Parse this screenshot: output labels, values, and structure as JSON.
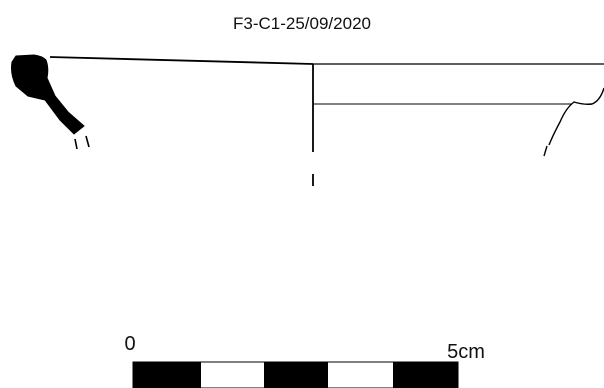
{
  "drawing": {
    "sample_label": "F3-C1-25/09/2020"
  },
  "scale_bar": {
    "start_label": "0",
    "end_label": "5cm",
    "segment_count": 5,
    "fill_color": "#000000",
    "background_color": "#ffffff"
  }
}
